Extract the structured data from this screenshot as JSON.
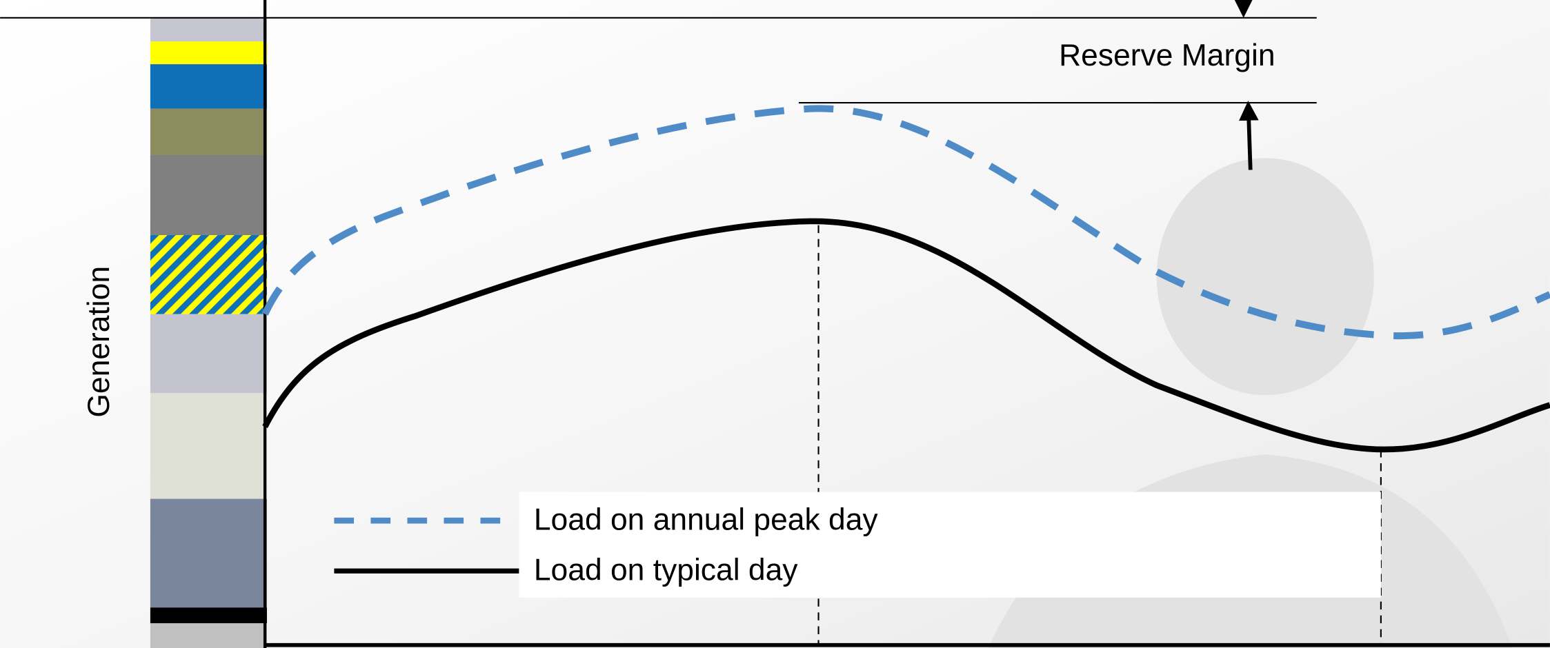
{
  "annotations": {
    "reserve_margin": "Reserve Margin",
    "y_axis": "Generation"
  },
  "legend": {
    "items": [
      {
        "label": "Load on annual peak day"
      },
      {
        "label": "Load on typical day"
      }
    ]
  }
}
